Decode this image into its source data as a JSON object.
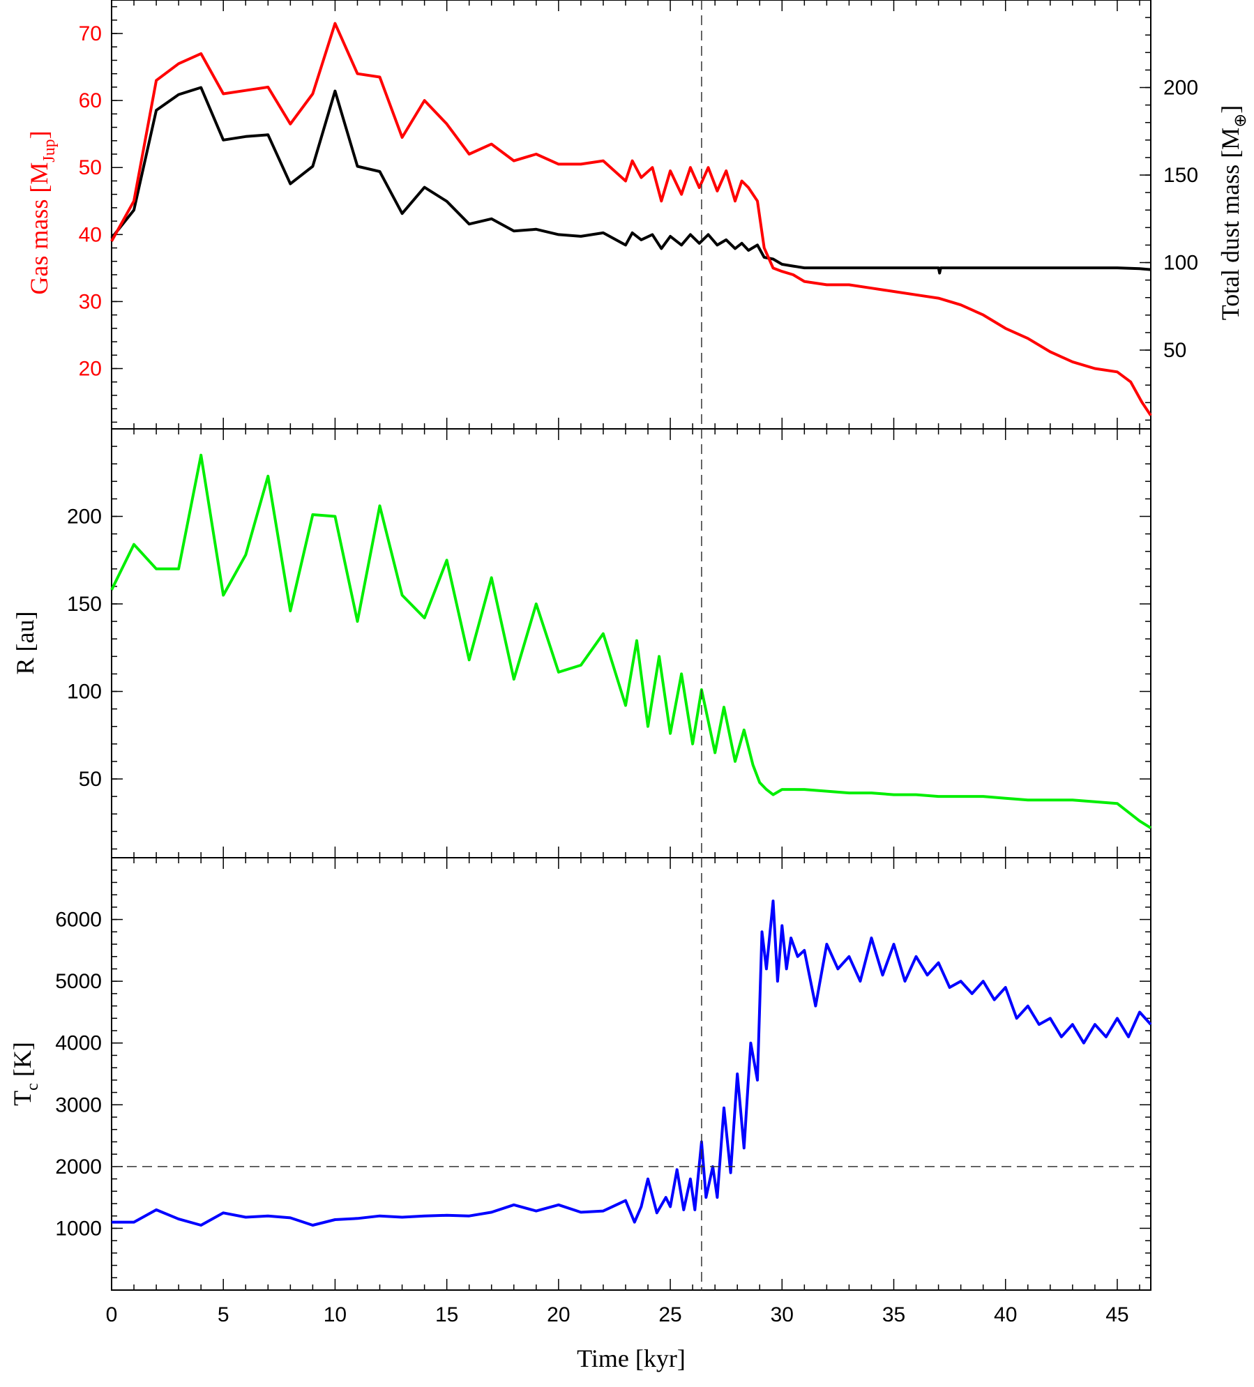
{
  "chart_data": [
    {
      "type": "line",
      "panel": "top",
      "xlabel": "Time [kyr]",
      "xlim": [
        0,
        46.5
      ],
      "xticks": [
        "0",
        "5",
        "10",
        "15",
        "20",
        "25",
        "30",
        "35",
        "40",
        "45"
      ],
      "vline_x": 26.4,
      "left_axis": {
        "label_main": "Gas mass [M",
        "label_sub": "Jup",
        "label_end": "]",
        "color": "#ff0000",
        "ylim": [
          11,
          75
        ],
        "ticks": [
          20,
          30,
          40,
          50,
          60,
          70
        ],
        "tick_labels": [
          "20",
          "30",
          "40",
          "50",
          "60",
          "70"
        ]
      },
      "right_axis": {
        "label_main": "Total dust mass [M",
        "label_sub": "⊕",
        "label_end": "]",
        "color": "#000000",
        "ylim": [
          5,
          250
        ],
        "ticks": [
          50,
          100,
          150,
          200
        ],
        "tick_labels": [
          "50",
          "100",
          "150",
          "200"
        ]
      },
      "series": [
        {
          "axis": "left",
          "color": "#ff0000",
          "x": [
            0,
            1,
            2,
            3,
            4,
            5,
            6,
            7,
            8,
            9,
            10,
            11,
            12,
            13,
            14,
            15,
            16,
            17,
            18,
            19,
            20,
            21,
            22,
            23,
            23.3,
            23.7,
            24.2,
            24.6,
            25.0,
            25.5,
            25.9,
            26.3,
            26.7,
            27.1,
            27.5,
            27.9,
            28.2,
            28.5,
            28.9,
            29.2,
            29.6,
            30.0,
            30.5,
            31,
            32,
            33,
            34,
            35,
            36,
            37,
            38,
            39,
            40,
            41,
            42,
            43,
            44,
            45,
            45.6,
            46.1,
            46.5
          ],
          "y": [
            39,
            45,
            63,
            65.5,
            67,
            61,
            61.5,
            62,
            56.5,
            61,
            71.5,
            64,
            63.5,
            54.5,
            60,
            56.5,
            52,
            53.5,
            51,
            52,
            50.5,
            50.5,
            51,
            48,
            51,
            48.5,
            50,
            45,
            49.5,
            46,
            50,
            47,
            50,
            46.5,
            49.5,
            45,
            48,
            47,
            45,
            38,
            35,
            34.5,
            34,
            33,
            32.5,
            32.5,
            32,
            31.5,
            31,
            30.5,
            29.5,
            28,
            26,
            24.5,
            22.5,
            21,
            20,
            19.5,
            18,
            15,
            13
          ]
        },
        {
          "axis": "right",
          "color": "#000000",
          "x": [
            0,
            1,
            2,
            3,
            4,
            5,
            6,
            7,
            8,
            9,
            10,
            11,
            12,
            13,
            14,
            15,
            16,
            17,
            18,
            19,
            20,
            21,
            22,
            23,
            23.3,
            23.7,
            24.2,
            24.6,
            25.0,
            25.5,
            25.9,
            26.3,
            26.7,
            27.1,
            27.5,
            27.9,
            28.2,
            28.5,
            28.9,
            29.2,
            29.6,
            30.0,
            30.5,
            31,
            32,
            33,
            34,
            35,
            36,
            37,
            37.05,
            37.1,
            38,
            39,
            40,
            41,
            42,
            43,
            44,
            45,
            46,
            46.5
          ],
          "y": [
            114,
            130,
            187,
            196,
            200,
            170,
            172,
            173,
            145,
            155,
            198,
            155,
            152,
            128,
            143,
            135,
            122,
            125,
            118,
            119,
            116,
            115,
            117,
            110,
            117,
            113,
            116,
            108,
            115,
            110,
            116,
            111,
            116,
            110,
            113,
            108,
            111,
            107,
            110,
            103,
            102,
            99,
            98,
            97,
            97,
            97,
            97,
            97,
            97,
            97,
            94,
            97,
            97,
            97,
            97,
            97,
            97,
            97,
            97,
            97,
            96.5,
            96
          ]
        }
      ]
    },
    {
      "type": "line",
      "panel": "middle",
      "ylabel": "R [au]",
      "xlim": [
        0,
        46.5
      ],
      "ylim": [
        5,
        250
      ],
      "yticks": [
        50,
        100,
        150,
        200
      ],
      "ytick_labels": [
        "50",
        "100",
        "150",
        "200"
      ],
      "vline_x": 26.4,
      "series": [
        {
          "color": "#00ee00",
          "x": [
            0,
            1,
            2,
            3,
            4,
            5,
            6,
            7,
            8,
            9,
            10,
            11,
            12,
            13,
            14,
            15,
            16,
            17,
            18,
            19,
            20,
            21,
            22,
            23,
            23.5,
            24,
            24.5,
            25,
            25.5,
            26,
            26.4,
            27,
            27.4,
            27.9,
            28.3,
            28.7,
            29.0,
            29.3,
            29.6,
            30,
            31,
            32,
            33,
            34,
            35,
            36,
            37,
            38,
            39,
            40,
            41,
            42,
            43,
            44,
            45,
            46,
            46.5
          ],
          "y": [
            158,
            184,
            170,
            170,
            235,
            155,
            178,
            223,
            146,
            201,
            200,
            140,
            206,
            155,
            142,
            175,
            118,
            165,
            107,
            150,
            111,
            115,
            133,
            92,
            129,
            80,
            120,
            76,
            110,
            70,
            101,
            65,
            91,
            60,
            78,
            58,
            48,
            44,
            41,
            44,
            44,
            43,
            42,
            42,
            41,
            41,
            40,
            40,
            40,
            39,
            38,
            38,
            38,
            37,
            36,
            26,
            22
          ]
        }
      ]
    },
    {
      "type": "line",
      "panel": "bottom",
      "ylabel_main": "T",
      "ylabel_sub": "c",
      "ylabel_end": " [K]",
      "xlim": [
        0,
        46.5
      ],
      "ylim": [
        0,
        7000
      ],
      "yticks": [
        1000,
        2000,
        3000,
        4000,
        5000,
        6000
      ],
      "ytick_labels": [
        "1000",
        "2000",
        "3000",
        "4000",
        "5000",
        "6000"
      ],
      "vline_x": 26.4,
      "hline_y": 2000,
      "series": [
        {
          "color": "#0000ff",
          "x": [
            0,
            1,
            2,
            3,
            4,
            5,
            6,
            7,
            8,
            9,
            10,
            11,
            12,
            13,
            14,
            15,
            16,
            17,
            18,
            19,
            20,
            21,
            22,
            23,
            23.4,
            23.7,
            24.0,
            24.4,
            24.8,
            25.0,
            25.3,
            25.6,
            25.9,
            26.1,
            26.4,
            26.6,
            26.9,
            27.1,
            27.4,
            27.7,
            28.0,
            28.3,
            28.6,
            28.9,
            29.1,
            29.3,
            29.6,
            29.8,
            30.0,
            30.2,
            30.4,
            30.7,
            31,
            31.5,
            32,
            32.5,
            33,
            33.5,
            34,
            34.5,
            35,
            35.5,
            36,
            36.5,
            37,
            37.5,
            38,
            38.5,
            39,
            39.5,
            40,
            40.5,
            41,
            41.5,
            42,
            42.5,
            43,
            43.5,
            44,
            44.5,
            45,
            45.5,
            46,
            46.5
          ],
          "y": [
            1100,
            1100,
            1300,
            1150,
            1050,
            1250,
            1180,
            1200,
            1170,
            1050,
            1140,
            1160,
            1200,
            1180,
            1200,
            1210,
            1200,
            1260,
            1380,
            1280,
            1380,
            1260,
            1280,
            1450,
            1100,
            1350,
            1800,
            1250,
            1500,
            1350,
            1950,
            1300,
            1800,
            1300,
            2400,
            1500,
            2000,
            1500,
            2950,
            1900,
            3500,
            2300,
            4000,
            3400,
            5800,
            5200,
            6300,
            5000,
            5900,
            5200,
            5700,
            5400,
            5500,
            4600,
            5600,
            5200,
            5400,
            5000,
            5700,
            5100,
            5600,
            5000,
            5400,
            5100,
            5300,
            4900,
            5000,
            4800,
            5000,
            4700,
            4900,
            4400,
            4600,
            4300,
            4400,
            4100,
            4300,
            4000,
            4300,
            4100,
            4400,
            4100,
            4500,
            4300
          ]
        }
      ]
    }
  ]
}
